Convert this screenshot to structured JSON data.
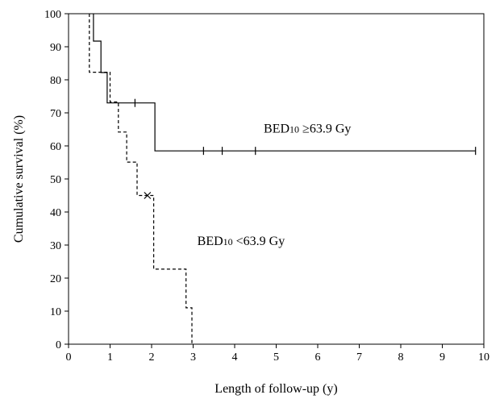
{
  "chart_data": {
    "type": "line",
    "title": "",
    "xlabel": "Length of follow-up (y)",
    "ylabel": "Cumulative survival (%)",
    "xlim": [
      0,
      10
    ],
    "ylim": [
      0,
      100
    ],
    "xticks": [
      0,
      1,
      2,
      3,
      4,
      5,
      6,
      7,
      8,
      9,
      10
    ],
    "yticks": [
      0,
      10,
      20,
      30,
      40,
      50,
      60,
      70,
      80,
      90,
      100
    ],
    "grid": false,
    "step": true,
    "series": [
      {
        "label": "BED10 ≥63.9 Gy",
        "line_style": "solid",
        "color": "#000000",
        "points": [
          [
            0.6,
            100
          ],
          [
            0.6,
            91.7
          ],
          [
            0.78,
            91.7
          ],
          [
            0.78,
            82.2
          ],
          [
            0.93,
            82.2
          ],
          [
            0.93,
            73
          ],
          [
            2.08,
            73
          ],
          [
            2.08,
            58.5
          ],
          [
            9.8,
            58.5
          ]
        ],
        "censored": [
          [
            1.6,
            73
          ],
          [
            3.25,
            58.5
          ],
          [
            3.7,
            58.5
          ],
          [
            4.5,
            58.5
          ],
          [
            9.8,
            58.5
          ]
        ]
      },
      {
        "label": "BED10 <63.9 Gy",
        "line_style": "dashed",
        "color": "#000000",
        "points": [
          [
            0.5,
            100
          ],
          [
            0.5,
            82.3
          ],
          [
            1.0,
            82.3
          ],
          [
            1.0,
            73.3
          ],
          [
            1.2,
            73.3
          ],
          [
            1.2,
            64.2
          ],
          [
            1.4,
            64.2
          ],
          [
            1.4,
            55.1
          ],
          [
            1.65,
            55.1
          ],
          [
            1.65,
            45
          ],
          [
            2.05,
            45
          ],
          [
            2.05,
            22.7
          ],
          [
            2.83,
            22.7
          ],
          [
            2.83,
            11
          ],
          [
            2.97,
            11
          ],
          [
            2.97,
            0
          ]
        ],
        "censored": [
          [
            1.9,
            45
          ]
        ]
      }
    ],
    "annotations": [
      {
        "text_main": "BED",
        "text_sub": "10",
        "text_rest": " ≥63.9 Gy",
        "x": 4.7,
        "y": 64
      },
      {
        "text_main": "BED",
        "text_sub": "10",
        "text_rest": " <63.9 Gy",
        "x": 3.1,
        "y": 30
      }
    ]
  }
}
